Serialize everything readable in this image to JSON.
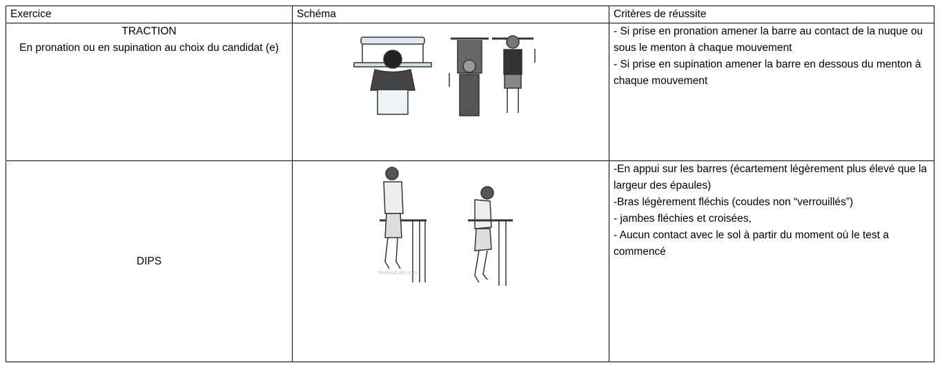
{
  "table": {
    "header": [
      "Exercice",
      "Schéma",
      "Critères de réussite"
    ],
    "rows": [
      {
        "exercise": [
          "TRACTION",
          "En pronation ou en supination au choix du candidat (e)"
        ],
        "criteria": [
          "- Si prise en pronation amener la barre au contact de la nuque ou sous le menton à chaque mouvement",
          "- Si prise en supination amener la barre en dessous du menton à chaque mouvement"
        ]
      },
      {
        "exercise": [
          "DIPS"
        ],
        "watermark": "WorkoutLabs.com",
        "criteria": [
          "-En appui sur les barres (écartement légèrement plus élevé que la largeur des épaules)",
          "-Bras légèrement fléchis (coudes non “verrouillés”)",
          "- jambes fléchies et croisées,",
          "- Aucun contact avec le sol à partir du moment où le test a commencé"
        ]
      }
    ]
  }
}
